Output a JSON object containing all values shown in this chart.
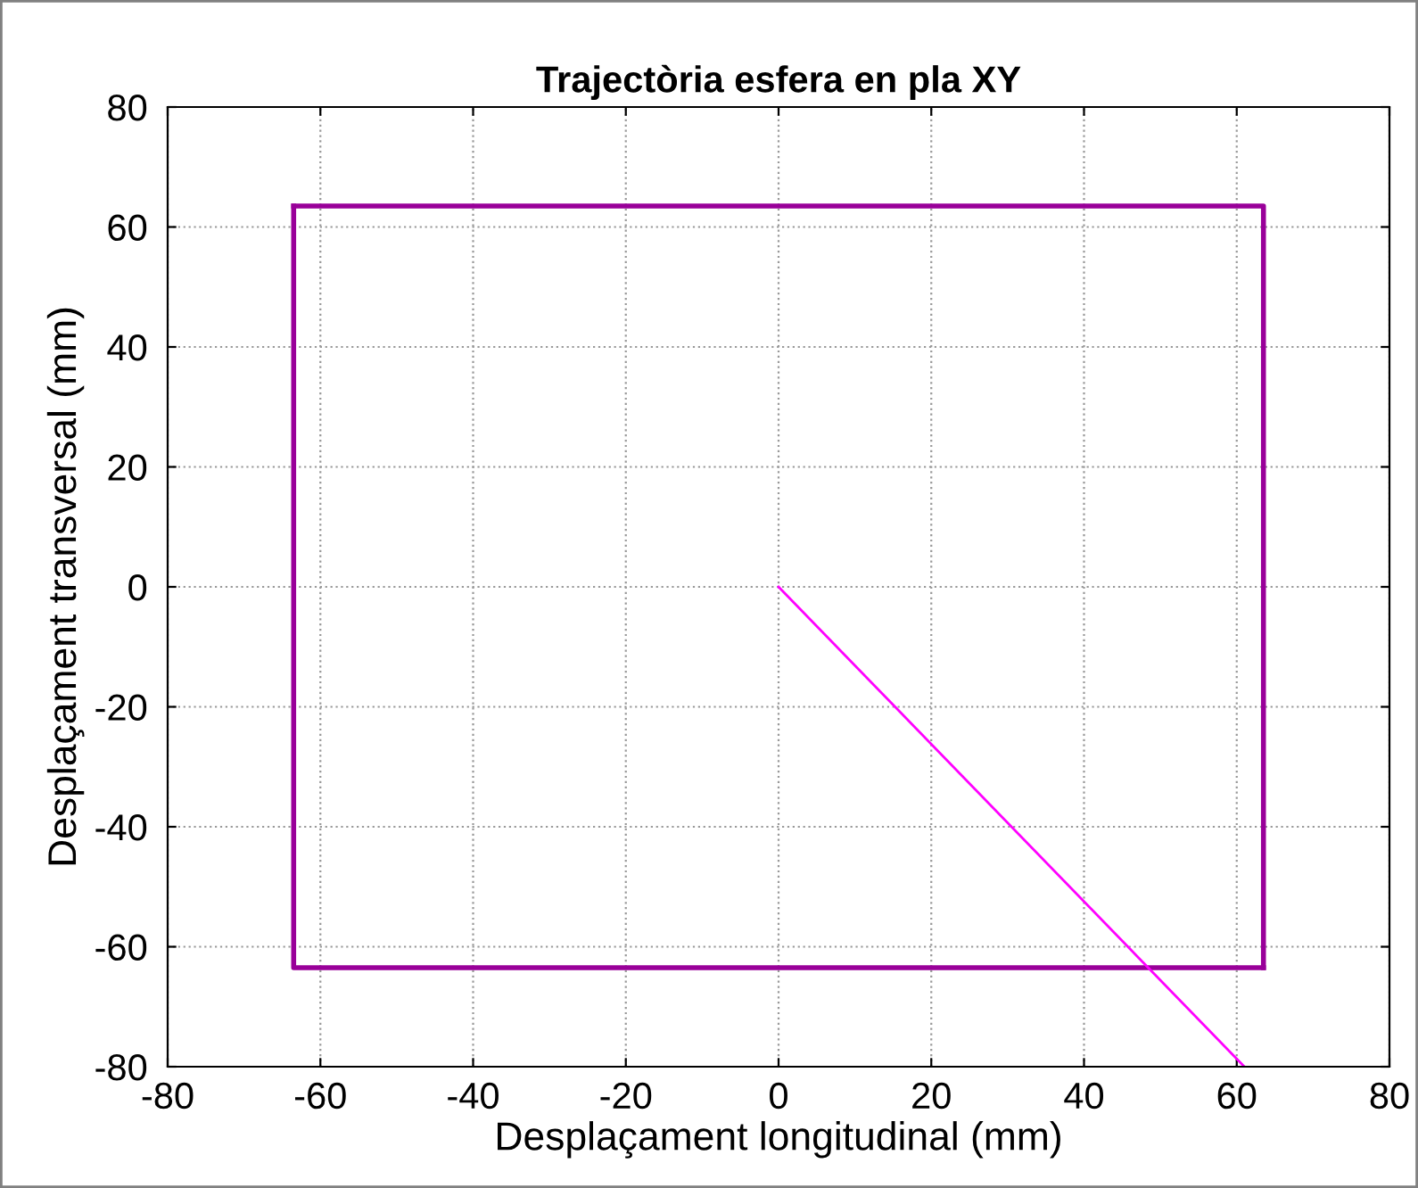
{
  "chart_data": {
    "type": "line",
    "title": "Trajectòria esfera en pla XY",
    "xlabel": "Desplaçament longitudinal (mm)",
    "ylabel": "Desplaçament transversal (mm)",
    "series": [
      {
        "color": "#990099",
        "x": [
          -63.5,
          63.5,
          63.5
        ],
        "values": [
          63.5,
          63.5,
          -63.5
        ]
      },
      {
        "color": "#990099",
        "x": [
          63.5,
          -63.5,
          -63.5
        ],
        "values": [
          -63.5,
          -63.5,
          63.5
        ]
      },
      {
        "color": "#ff00ff",
        "x": [
          0,
          61
        ],
        "values": [
          0,
          -80
        ]
      }
    ],
    "xlim": [
      -80,
      80
    ],
    "xticks": [
      -80,
      -60,
      -40,
      -20,
      0,
      20,
      40,
      60,
      80
    ],
    "ylim": [
      -80,
      80
    ],
    "yticks": [
      -80,
      -60,
      -40,
      -20,
      0,
      20,
      40,
      60,
      80
    ],
    "grid": true,
    "legend": false
  }
}
